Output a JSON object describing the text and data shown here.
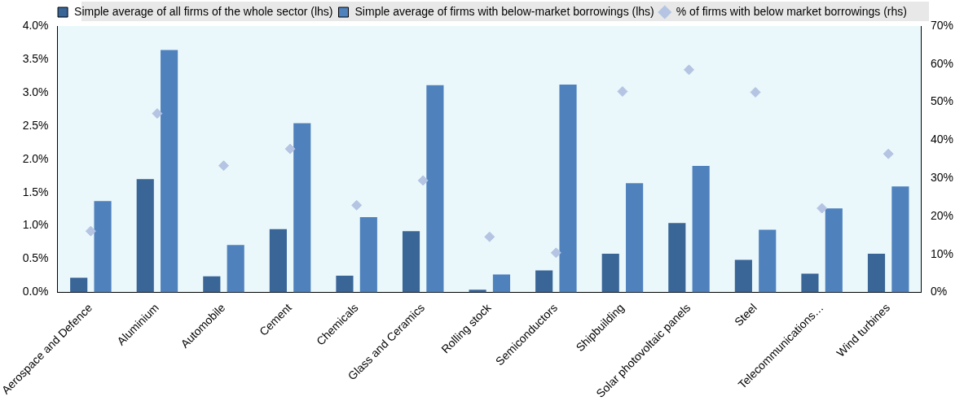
{
  "chart_data": {
    "type": "bar",
    "categories": [
      "Aerospace and Defence",
      "Aluminium",
      "Automobile",
      "Cement",
      "Chemicals",
      "Glass and Ceramics",
      "Rolling stock",
      "Semiconductors",
      "Shipbuilding",
      "Solar photovoltaic panels",
      "Steel",
      "Telecommunications…",
      "Wind turbines"
    ],
    "series": [
      {
        "name": "Simple average of all firms of the whole sector (lhs)",
        "color": "#3a6597",
        "values": [
          0.22,
          1.7,
          0.24,
          0.95,
          0.25,
          0.92,
          0.04,
          0.33,
          0.58,
          1.04,
          0.49,
          0.28,
          0.58
        ]
      },
      {
        "name": "Simple average of firms with below-market borrowings (lhs)",
        "color": "#4f81bd",
        "values": [
          1.37,
          3.64,
          0.71,
          2.54,
          1.13,
          3.11,
          0.27,
          3.12,
          1.64,
          1.9,
          0.94,
          1.26,
          1.59
        ]
      },
      {
        "name": "% of firms with below market borrowings (rhs)",
        "type": "scatter",
        "axis": "y2",
        "color": "#b4c4e2",
        "values": [
          16.1,
          47,
          33.3,
          37.7,
          22.9,
          29.4,
          14.6,
          10.4,
          52.8,
          58.5,
          52.6,
          22.1,
          36.4
        ]
      }
    ],
    "ylim": [
      0,
      4
    ],
    "yticks": [
      {
        "value": 0,
        "label": "0.0%"
      },
      {
        "value": 0.5,
        "label": "0.5%"
      },
      {
        "value": 1,
        "label": "1.0%"
      },
      {
        "value": 1.5,
        "label": "1.5%"
      },
      {
        "value": 2,
        "label": "2.0%"
      },
      {
        "value": 2.5,
        "label": "2.5%"
      },
      {
        "value": 3,
        "label": "3.0%"
      },
      {
        "value": 3.5,
        "label": "3.5%"
      },
      {
        "value": 4,
        "label": "4.0%"
      }
    ],
    "y2lim": [
      0,
      70
    ],
    "y2ticks": [
      {
        "value": 0,
        "label": "0%"
      },
      {
        "value": 10,
        "label": "10%"
      },
      {
        "value": 20,
        "label": "20%"
      },
      {
        "value": 30,
        "label": "30%"
      },
      {
        "value": 40,
        "label": "40%"
      },
      {
        "value": 50,
        "label": "50%"
      },
      {
        "value": 60,
        "label": "60%"
      },
      {
        "value": 70,
        "label": "70%"
      }
    ],
    "grid": false,
    "legend": "top",
    "marker": "diamond"
  }
}
